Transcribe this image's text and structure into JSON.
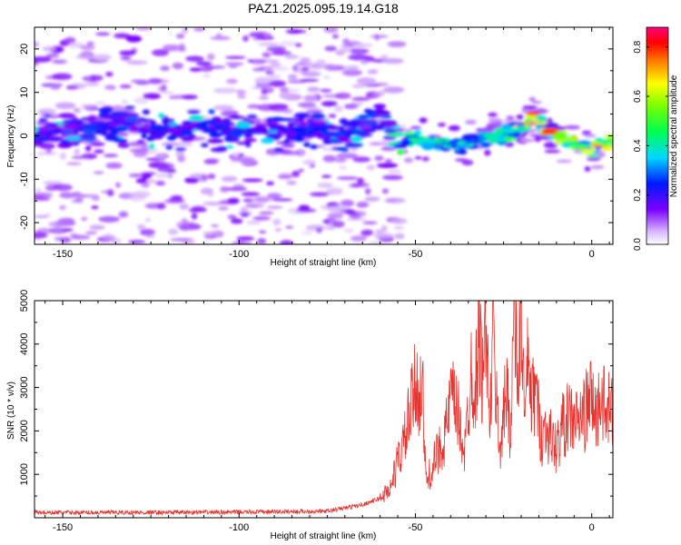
{
  "figure_title": "PAZ1.2025.095.19.14.G18",
  "colors": {
    "snr_line": "#e8322d",
    "axes": "#000000"
  },
  "chart_data": [
    {
      "type": "heatmap",
      "title": "",
      "xlabel": "Height of straight line (km)",
      "ylabel": "Frequency (Hz)",
      "xlim": [
        -158,
        6
      ],
      "ylim": [
        -25,
        25
      ],
      "xticks": [
        -150,
        -100,
        -50,
        0
      ],
      "yticks": [
        -20,
        -10,
        0,
        10,
        20
      ],
      "colormap": "rainbow (violet → blue → cyan → green → yellow → red → magenta)",
      "colorbar": {
        "label": "Normalized spectral amplitude",
        "range": [
          0.0,
          0.88
        ],
        "ticks": [
          0.0,
          0.2,
          0.4,
          0.6,
          0.8
        ]
      },
      "ridge": {
        "x": [
          -158,
          -150,
          -140,
          -130,
          -120,
          -110,
          -100,
          -90,
          -80,
          -70,
          -64,
          -60,
          -57,
          -55,
          -50,
          -45,
          -40,
          -35,
          -30,
          -25,
          -20,
          -17,
          -15,
          -10,
          -5,
          0,
          5
        ],
        "y": [
          0,
          1,
          2,
          2,
          1,
          2,
          1,
          1,
          1,
          0,
          2,
          6,
          2,
          -2,
          -1,
          -1,
          -2,
          -2,
          0,
          0,
          2,
          4,
          3,
          0,
          -2,
          -3,
          -2
        ]
      }
    },
    {
      "type": "line",
      "title": "",
      "xlabel": "Height of straight line (km)",
      "ylabel": "SNR (10 * v/v)",
      "xlim": [
        -158,
        6
      ],
      "ylim": [
        0,
        5000
      ],
      "xticks": [
        -150,
        -100,
        -50,
        0
      ],
      "yticks": [
        1000,
        2000,
        3000,
        4000,
        5000
      ],
      "series": [
        {
          "x": [
            -158,
            -130,
            -100,
            -75,
            -65,
            -60,
            -57,
            -55,
            -53,
            -51,
            -50,
            -48,
            -47,
            -45,
            -43,
            -41,
            -40,
            -38,
            -36,
            -34,
            -33,
            -32,
            -31,
            -30,
            -29,
            -28,
            -27,
            -26,
            -25,
            -24,
            -23,
            -22,
            -21,
            -20,
            -19,
            -18,
            -17,
            -16,
            -15,
            -14,
            -13,
            -12,
            -10,
            -8,
            -6,
            -4,
            -2,
            0,
            1,
            2,
            3,
            4,
            5,
            6
          ],
          "y": [
            120,
            120,
            130,
            150,
            300,
            450,
            700,
            1300,
            1800,
            2600,
            3000,
            3000,
            800,
            1200,
            1600,
            2100,
            2800,
            2400,
            1500,
            3600,
            2700,
            4700,
            3000,
            5000,
            1800,
            4300,
            2600,
            1600,
            2300,
            3100,
            1900,
            4800,
            2900,
            5000,
            2100,
            3700,
            2600,
            3000,
            2300,
            1800,
            2100,
            1900,
            1600,
            2200,
            2300,
            2200,
            2400,
            2800,
            2300,
            2600,
            2900,
            2200,
            2500,
            2400
          ]
        }
      ]
    }
  ]
}
